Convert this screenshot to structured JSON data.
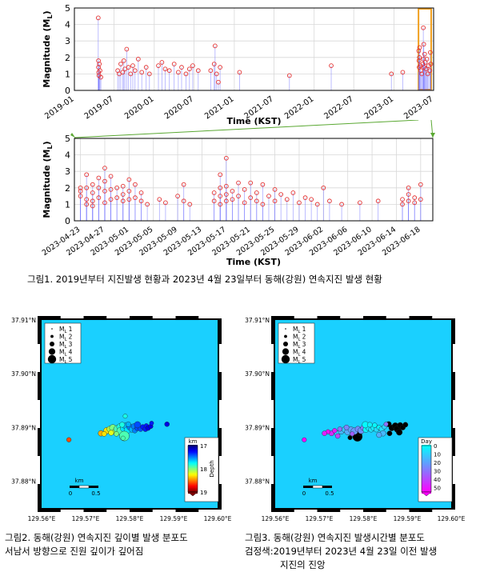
{
  "chart_data": [
    {
      "type": "scatter",
      "style": "stem",
      "ylabel": "Magnitude (M",
      "ylabel_sub": "L",
      "xlabel": "Time (KST)",
      "ylim": [
        0,
        5
      ],
      "yticks": [
        "0",
        "1",
        "2",
        "3",
        "4",
        "5"
      ],
      "xticks": [
        "2019-01",
        "2019-07",
        "2020-01",
        "2020-07",
        "2021-01",
        "2021-07",
        "2022-01",
        "2022-07",
        "2023-01",
        "2023-07"
      ],
      "highlight_range": [
        "2023-04-23",
        "2023-06-20"
      ],
      "highlight_color": "#f0a020",
      "points": [
        [
          "2019-04-20",
          4.4
        ],
        [
          "2019-04-21",
          1.8
        ],
        [
          "2019-04-21",
          1.4
        ],
        [
          "2019-04-22",
          1.1
        ],
        [
          "2019-04-23",
          0.9
        ],
        [
          "2019-04-25",
          1.6
        ],
        [
          "2019-04-28",
          1.2
        ],
        [
          "2019-05-02",
          0.8
        ],
        [
          "2019-07-18",
          1.2
        ],
        [
          "2019-07-25",
          1.0
        ],
        [
          "2019-08-01",
          1.6
        ],
        [
          "2019-08-10",
          1.1
        ],
        [
          "2019-08-15",
          1.8
        ],
        [
          "2019-08-20",
          1.3
        ],
        [
          "2019-08-28",
          2.5
        ],
        [
          "2019-09-05",
          1.4
        ],
        [
          "2019-09-15",
          1.0
        ],
        [
          "2019-09-25",
          1.5
        ],
        [
          "2019-10-05",
          1.2
        ],
        [
          "2019-10-20",
          1.9
        ],
        [
          "2019-11-05",
          1.1
        ],
        [
          "2019-11-25",
          1.4
        ],
        [
          "2019-12-10",
          1.0
        ],
        [
          "2020-01-20",
          1.5
        ],
        [
          "2020-02-05",
          1.7
        ],
        [
          "2020-02-20",
          1.3
        ],
        [
          "2020-03-10",
          1.2
        ],
        [
          "2020-04-01",
          1.6
        ],
        [
          "2020-04-20",
          1.1
        ],
        [
          "2020-05-05",
          1.4
        ],
        [
          "2020-05-25",
          1.0
        ],
        [
          "2020-06-10",
          1.3
        ],
        [
          "2020-06-25",
          1.5
        ],
        [
          "2020-07-20",
          1.2
        ],
        [
          "2020-09-15",
          1.2
        ],
        [
          "2020-10-01",
          1.6
        ],
        [
          "2020-10-05",
          2.7
        ],
        [
          "2020-10-12",
          1.0
        ],
        [
          "2020-10-20",
          0.5
        ],
        [
          "2020-10-28",
          1.4
        ],
        [
          "2021-01-25",
          1.1
        ],
        [
          "2021-09-10",
          0.9
        ],
        [
          "2022-03-20",
          1.5
        ],
        [
          "2022-12-20",
          1.0
        ],
        [
          "2023-02-10",
          1.1
        ],
        [
          "2023-04-24",
          2.4
        ],
        [
          "2023-04-25",
          1.8
        ],
        [
          "2023-04-26",
          1.4
        ],
        [
          "2023-04-27",
          2.0
        ],
        [
          "2023-04-28",
          2.6
        ],
        [
          "2023-05-01",
          1.5
        ],
        [
          "2023-05-04",
          1.2
        ],
        [
          "2023-05-08",
          1.0
        ],
        [
          "2023-05-12",
          1.6
        ],
        [
          "2023-05-15",
          3.8
        ],
        [
          "2023-05-16",
          1.9
        ],
        [
          "2023-05-17",
          2.8
        ],
        [
          "2023-05-19",
          1.4
        ],
        [
          "2023-05-21",
          2.2
        ],
        [
          "2023-05-24",
          1.7
        ],
        [
          "2023-05-27",
          1.3
        ],
        [
          "2023-05-31",
          1.9
        ],
        [
          "2023-06-04",
          1.0
        ],
        [
          "2023-06-08",
          1.5
        ],
        [
          "2023-06-14",
          1.2
        ],
        [
          "2023-06-16",
          2.3
        ],
        [
          "2023-06-18",
          1.6
        ]
      ]
    },
    {
      "type": "scatter",
      "style": "stem",
      "ylabel": "Magnitude (M",
      "ylabel_sub": "L",
      "xlabel": "Time (KST)",
      "ylim": [
        0,
        5
      ],
      "yticks": [
        "0",
        "1",
        "2",
        "3",
        "4",
        "5"
      ],
      "xticks": [
        "2023-04-23",
        "2023-04-27",
        "2023-05-01",
        "2023-05-05",
        "2023-05-09",
        "2023-05-13",
        "2023-05-17",
        "2023-05-21",
        "2023-05-25",
        "2023-05-29",
        "2023-06-02",
        "2023-06-06",
        "2023-06-10",
        "2023-06-14",
        "2023-06-18"
      ],
      "points": [
        [
          "2023-04-23",
          2.0
        ],
        [
          "2023-04-23",
          1.8
        ],
        [
          "2023-04-23",
          1.5
        ],
        [
          "2023-04-24",
          2.8
        ],
        [
          "2023-04-24",
          2.0
        ],
        [
          "2023-04-24",
          1.3
        ],
        [
          "2023-04-24",
          1.0
        ],
        [
          "2023-04-25",
          2.2
        ],
        [
          "2023-04-25",
          1.7
        ],
        [
          "2023-04-25",
          1.2
        ],
        [
          "2023-04-25",
          0.9
        ],
        [
          "2023-04-26",
          2.6
        ],
        [
          "2023-04-26",
          2.0
        ],
        [
          "2023-04-26",
          1.4
        ],
        [
          "2023-04-27",
          3.2
        ],
        [
          "2023-04-27",
          2.4
        ],
        [
          "2023-04-27",
          1.8
        ],
        [
          "2023-04-27",
          1.1
        ],
        [
          "2023-04-28",
          2.7
        ],
        [
          "2023-04-28",
          1.9
        ],
        [
          "2023-04-28",
          1.3
        ],
        [
          "2023-04-29",
          2.0
        ],
        [
          "2023-04-29",
          1.4
        ],
        [
          "2023-04-30",
          1.6
        ],
        [
          "2023-04-30",
          2.1
        ],
        [
          "2023-04-30",
          1.2
        ],
        [
          "2023-05-01",
          2.5
        ],
        [
          "2023-05-01",
          1.8
        ],
        [
          "2023-05-01",
          1.3
        ],
        [
          "2023-05-02",
          2.2
        ],
        [
          "2023-05-02",
          1.4
        ],
        [
          "2023-05-03",
          1.2
        ],
        [
          "2023-05-03",
          1.7
        ],
        [
          "2023-05-04",
          1.0
        ],
        [
          "2023-05-06",
          1.3
        ],
        [
          "2023-05-07",
          1.1
        ],
        [
          "2023-05-09",
          1.5
        ],
        [
          "2023-05-10",
          2.2
        ],
        [
          "2023-05-10",
          1.2
        ],
        [
          "2023-05-11",
          1.0
        ],
        [
          "2023-05-15",
          1.7
        ],
        [
          "2023-05-15",
          1.2
        ],
        [
          "2023-05-16",
          2.8
        ],
        [
          "2023-05-16",
          2.0
        ],
        [
          "2023-05-16",
          1.5
        ],
        [
          "2023-05-16",
          1.0
        ],
        [
          "2023-05-17",
          3.8
        ],
        [
          "2023-05-17",
          2.1
        ],
        [
          "2023-05-17",
          1.6
        ],
        [
          "2023-05-17",
          1.2
        ],
        [
          "2023-05-18",
          1.8
        ],
        [
          "2023-05-18",
          1.3
        ],
        [
          "2023-05-19",
          2.3
        ],
        [
          "2023-05-19",
          1.5
        ],
        [
          "2023-05-20",
          1.9
        ],
        [
          "2023-05-20",
          1.1
        ],
        [
          "2023-05-21",
          2.3
        ],
        [
          "2023-05-21",
          1.4
        ],
        [
          "2023-05-22",
          1.7
        ],
        [
          "2023-05-22",
          1.2
        ],
        [
          "2023-05-23",
          2.2
        ],
        [
          "2023-05-23",
          1.0
        ],
        [
          "2023-05-24",
          1.5
        ],
        [
          "2023-05-25",
          1.9
        ],
        [
          "2023-05-25",
          1.2
        ],
        [
          "2023-05-26",
          1.6
        ],
        [
          "2023-05-27",
          1.3
        ],
        [
          "2023-05-28",
          1.7
        ],
        [
          "2023-05-29",
          1.1
        ],
        [
          "2023-05-30",
          1.4
        ],
        [
          "2023-05-31",
          1.3
        ],
        [
          "2023-06-01",
          1.0
        ],
        [
          "2023-06-02",
          2.0
        ],
        [
          "2023-06-03",
          1.2
        ],
        [
          "2023-06-05",
          1.0
        ],
        [
          "2023-06-08",
          1.1
        ],
        [
          "2023-06-11",
          1.2
        ],
        [
          "2023-06-15",
          1.3
        ],
        [
          "2023-06-15",
          1.0
        ],
        [
          "2023-06-16",
          2.0
        ],
        [
          "2023-06-16",
          1.6
        ],
        [
          "2023-06-16",
          1.2
        ],
        [
          "2023-06-17",
          1.4
        ],
        [
          "2023-06-17",
          1.1
        ],
        [
          "2023-06-18",
          2.2
        ],
        [
          "2023-06-18",
          1.3
        ]
      ]
    },
    {
      "type": "scatter",
      "style": "map",
      "xticks": [
        "129.56°E",
        "129.57°E",
        "129.58°E",
        "129.59°E",
        "129.60°E"
      ],
      "yticks": [
        "37.88°N",
        "37.89°N",
        "37.90°N",
        "37.91°N"
      ],
      "xlim": [
        129.56,
        129.6
      ],
      "ylim": [
        37.875,
        37.91
      ],
      "legend": [
        "M",
        "M",
        "M",
        "M",
        "M"
      ],
      "legend_sub": "L",
      "legend_vals": [
        "1",
        "2",
        "3",
        "4",
        "5"
      ],
      "scalebar": {
        "unit": "km",
        "labels": [
          "0",
          "0.5"
        ]
      },
      "colorbar": {
        "label": "km",
        "sublabel": "Depth",
        "ticks": [
          "17",
          "18",
          "19"
        ],
        "range": [
          17,
          19
        ],
        "palette": "jet"
      },
      "events": [
        [
          129.5735,
          37.8889,
          1.8,
          18.4
        ],
        [
          129.5748,
          37.8894,
          2.1,
          18.3
        ],
        [
          129.5755,
          37.8897,
          1.9,
          18.1
        ],
        [
          129.5762,
          37.8899,
          2.4,
          18.0
        ],
        [
          129.5768,
          37.8893,
          2.0,
          18.1
        ],
        [
          129.5772,
          37.8897,
          2.6,
          17.9
        ],
        [
          129.5778,
          37.8901,
          2.2,
          17.8
        ],
        [
          129.578,
          37.8893,
          3.0,
          17.9
        ],
        [
          129.5786,
          37.8898,
          2.1,
          17.7
        ],
        [
          129.579,
          37.8903,
          1.9,
          17.6
        ],
        [
          129.5795,
          37.8895,
          2.3,
          17.7
        ],
        [
          129.58,
          37.8901,
          2.0,
          17.5
        ],
        [
          129.5805,
          37.8896,
          1.7,
          17.6
        ],
        [
          129.581,
          37.8902,
          1.8,
          17.5
        ],
        [
          129.5742,
          37.8888,
          1.5,
          18.3
        ],
        [
          129.5758,
          37.889,
          1.6,
          18.2
        ],
        [
          129.577,
          37.8888,
          1.4,
          18.0
        ],
        [
          129.5783,
          37.8905,
          1.6,
          17.8
        ],
        [
          129.5797,
          37.8906,
          1.5,
          17.6
        ],
        [
          129.5812,
          37.8894,
          1.4,
          17.5
        ],
        [
          129.5818,
          37.8899,
          1.8,
          17.4
        ],
        [
          129.5825,
          37.8897,
          1.5,
          17.4
        ],
        [
          129.583,
          37.8901,
          1.4,
          17.3
        ],
        [
          129.5836,
          37.8897,
          1.6,
          17.3
        ],
        [
          129.5838,
          37.8903,
          1.3,
          17.3
        ],
        [
          129.5842,
          37.8899,
          1.5,
          17.2
        ],
        [
          129.5848,
          37.8902,
          1.3,
          17.2
        ],
        [
          129.5788,
          37.8884,
          3.8,
          17.9
        ],
        [
          129.579,
          37.8921,
          1.2,
          17.8
        ],
        [
          129.585,
          37.8908,
          1.1,
          17.3
        ],
        [
          129.5885,
          37.8906,
          1.4,
          17.2
        ],
        [
          129.5662,
          37.8877,
          1.3,
          18.6
        ],
        [
          129.5785,
          37.888,
          1.2,
          17.9
        ],
        [
          129.5818,
          37.8905,
          2.2,
          17.4
        ]
      ]
    },
    {
      "type": "scatter",
      "style": "map",
      "xticks": [
        "129.56°E",
        "129.57°E",
        "129.58°E",
        "129.59°E",
        "129.60°E"
      ],
      "yticks": [
        "37.88°N",
        "37.89°N",
        "37.90°N",
        "37.91°N"
      ],
      "xlim": [
        129.56,
        129.6
      ],
      "ylim": [
        37.875,
        37.91
      ],
      "legend": [
        "M",
        "M",
        "M",
        "M",
        "M"
      ],
      "legend_sub": "L",
      "legend_vals": [
        "1",
        "2",
        "3",
        "4",
        "5"
      ],
      "scalebar": {
        "unit": "km",
        "labels": [
          "0",
          "0.5"
        ]
      },
      "colorbar": {
        "label": "Day",
        "ticks": [
          "0",
          "10",
          "20",
          "30",
          "40",
          "50"
        ],
        "range": [
          0,
          55
        ],
        "palette": "cyan-magenta"
      },
      "events": [
        [
          129.574,
          37.8889,
          1.6,
          10
        ],
        [
          129.575,
          37.8893,
          2.0,
          15
        ],
        [
          129.5758,
          37.8896,
          1.8,
          12
        ],
        [
          129.5765,
          37.8892,
          2.2,
          18
        ],
        [
          129.5772,
          37.8896,
          1.9,
          20
        ],
        [
          129.578,
          37.8893,
          2.4,
          22
        ],
        [
          129.5788,
          37.8897,
          1.8,
          25
        ],
        [
          129.5795,
          37.8894,
          2.1,
          23
        ],
        [
          129.58,
          37.8899,
          1.6,
          28
        ],
        [
          129.5806,
          37.8896,
          1.9,
          3
        ],
        [
          129.5812,
          37.8899,
          1.7,
          5
        ],
        [
          129.5818,
          37.8896,
          1.6,
          6
        ],
        [
          129.5824,
          37.8899,
          1.8,
          4
        ],
        [
          129.583,
          37.8896,
          1.5,
          8
        ],
        [
          129.5836,
          37.89,
          1.4,
          2
        ],
        [
          129.5842,
          37.8897,
          1.6,
          7
        ],
        [
          129.5848,
          37.8901,
          1.3,
          9
        ],
        [
          129.5805,
          37.8905,
          2.2,
          1
        ],
        [
          129.5815,
          37.8905,
          1.5,
          3
        ],
        [
          129.5826,
          37.8904,
          1.4,
          2
        ],
        [
          129.5747,
          37.8897,
          1.3,
          30
        ],
        [
          129.5762,
          37.89,
          1.5,
          26
        ],
        [
          129.5775,
          37.8888,
          1.2,
          35
        ],
        [
          129.5728,
          37.8889,
          1.5,
          45
        ],
        [
          129.5735,
          37.8894,
          1.3,
          50
        ],
        [
          129.572,
          37.8892,
          1.2,
          52
        ],
        [
          129.5712,
          37.8889,
          1.4,
          48
        ],
        [
          129.5742,
          37.8884,
          1.4,
          40
        ],
        [
          129.5666,
          37.8877,
          1.2,
          55
        ],
        [
          129.5852,
          37.8906,
          1.2,
          30
        ],
        [
          129.5845,
          37.8889,
          1.8,
          15
        ],
        [
          129.5836,
          37.8886,
          1.6,
          18
        ]
      ],
      "pre2023_events": [
        [
          129.5787,
          37.8883,
          3.7
        ],
        [
          129.5858,
          37.8906,
          1.7
        ],
        [
          129.5865,
          37.8899,
          1.9
        ],
        [
          129.5873,
          37.8903,
          2.1
        ],
        [
          129.5878,
          37.8897,
          2.4
        ],
        [
          129.5884,
          37.8904,
          1.8
        ],
        [
          129.589,
          37.89,
          1.6
        ],
        [
          129.5896,
          37.8905,
          1.5
        ],
        [
          129.5882,
          37.8891,
          2.0
        ],
        [
          129.586,
          37.8889,
          1.5
        ],
        [
          129.5792,
          37.8889,
          1.3
        ],
        [
          129.577,
          37.8881,
          1.2
        ]
      ]
    }
  ],
  "captions": {
    "fig1": "그림1. 2019년부터 지진발생 현황과 2023년 4월 23일부터 동해(강원) 연속지진 발생 현황",
    "fig2_line1": "그림2. 동해(강원) 연속지진 깊이별 발생 분포도",
    "fig2_line2": "서남서 방향으로 진원 깊이가 깊어짐",
    "fig3_line1": "그림3. 동해(강원) 연속지진 발생시간별 분포도",
    "fig3_line2": "검정색:2019년부터 2023년 4월 23일 이전 발생",
    "fig3_line3": "지진의 진앙"
  }
}
